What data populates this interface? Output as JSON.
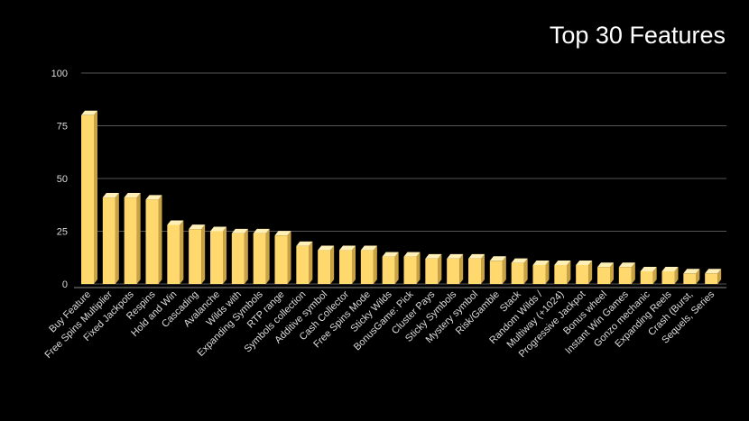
{
  "chart_data": {
    "type": "bar",
    "title": "Top 30 Features",
    "xlabel": "",
    "ylabel": "",
    "ylim": [
      0,
      100
    ],
    "yticks": [
      0,
      25,
      50,
      75,
      100
    ],
    "grid": true,
    "bar_color": "#FFD86E",
    "bar_side_color": "#C9A243",
    "bar_top_color": "#FFF0B8",
    "categories": [
      "Buy Feature",
      "Free Spins Multiplier",
      "Fixed Jackpots",
      "Respins",
      "Hold and Win",
      "Cascading",
      "Avalanche",
      "Wilds with",
      "Expanding Symbols",
      "RTP range",
      "Symbols collection",
      "Additive symbol",
      "Cash Collector",
      "Free Spins Mode",
      "Sticky Wilds",
      "BonusGame: Pick",
      "Cluster Pays",
      "Sticky Symbols",
      "Mystery symbol",
      "Risk/Gamble",
      "Stack",
      "Random Wilds /",
      "Multiway (+1024)",
      "Progressive Jackpot",
      "Bonus wheel",
      "Instant Win Games",
      "Gonzo mechanic",
      "Expanding Reels",
      "Crash (Burst,",
      "Sequels, Series"
    ],
    "values": [
      80,
      41,
      41,
      40,
      28,
      26,
      25,
      24,
      24,
      23,
      18,
      16,
      16,
      16,
      13,
      13,
      12,
      12,
      12,
      11,
      10,
      9,
      9,
      9,
      8,
      8,
      6,
      6,
      5,
      5
    ]
  }
}
